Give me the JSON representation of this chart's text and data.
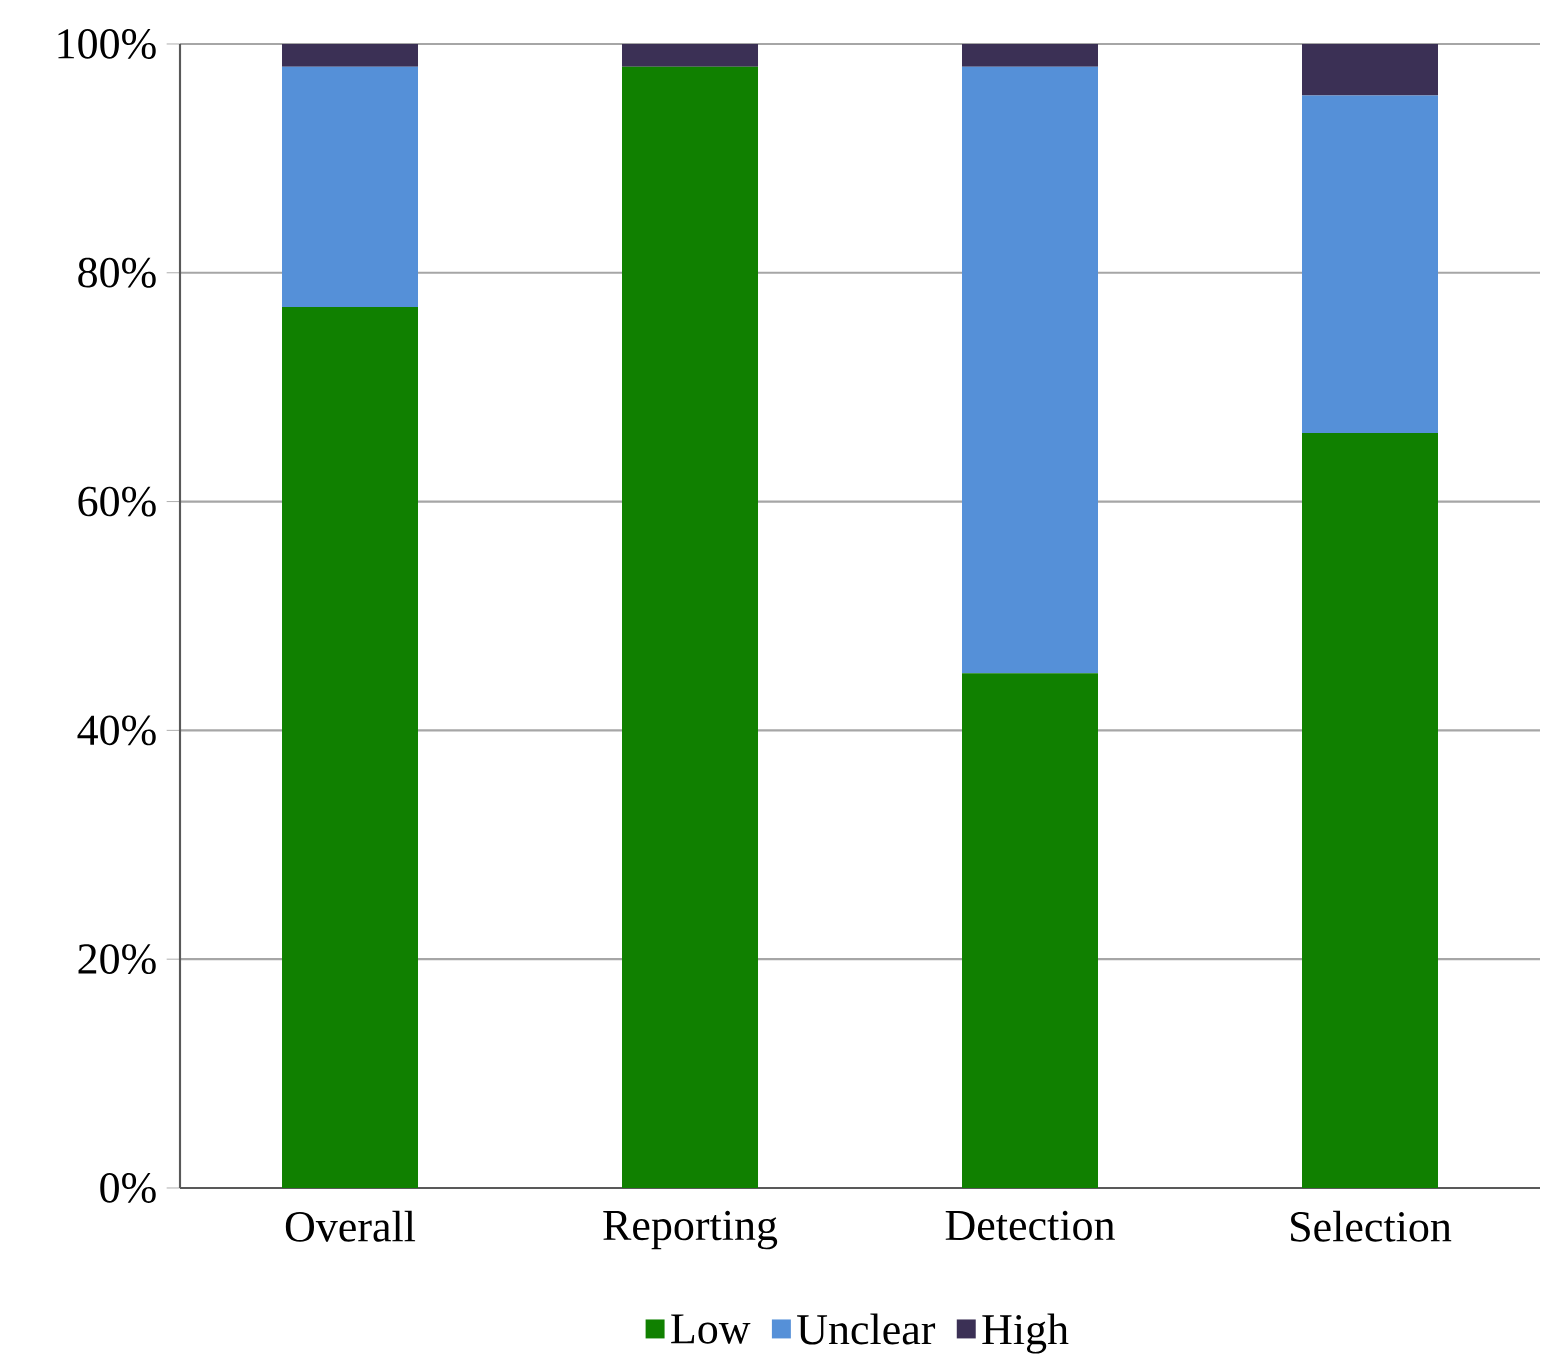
{
  "chart_data": {
    "type": "bar",
    "stacked": true,
    "categories": [
      "Overall",
      "Reporting",
      "Detection",
      "Selection"
    ],
    "series": [
      {
        "name": "Low",
        "color": "#108000",
        "values": [
          77,
          98,
          45,
          66
        ]
      },
      {
        "name": "Unclear",
        "color": "#5590d8",
        "values": [
          21,
          0,
          53,
          29.5
        ]
      },
      {
        "name": "High",
        "color": "#3b3055",
        "values": [
          2,
          2,
          2,
          4.5
        ]
      }
    ],
    "ylim": [
      0,
      100
    ],
    "yticks": [
      {
        "value": 0,
        "label": "0%"
      },
      {
        "value": 20,
        "label": "20%"
      },
      {
        "value": 40,
        "label": "40%"
      },
      {
        "value": 60,
        "label": "60%"
      },
      {
        "value": 80,
        "label": "80%"
      },
      {
        "value": 100,
        "label": "100%"
      }
    ],
    "grid": "y",
    "legend": "bottom"
  }
}
